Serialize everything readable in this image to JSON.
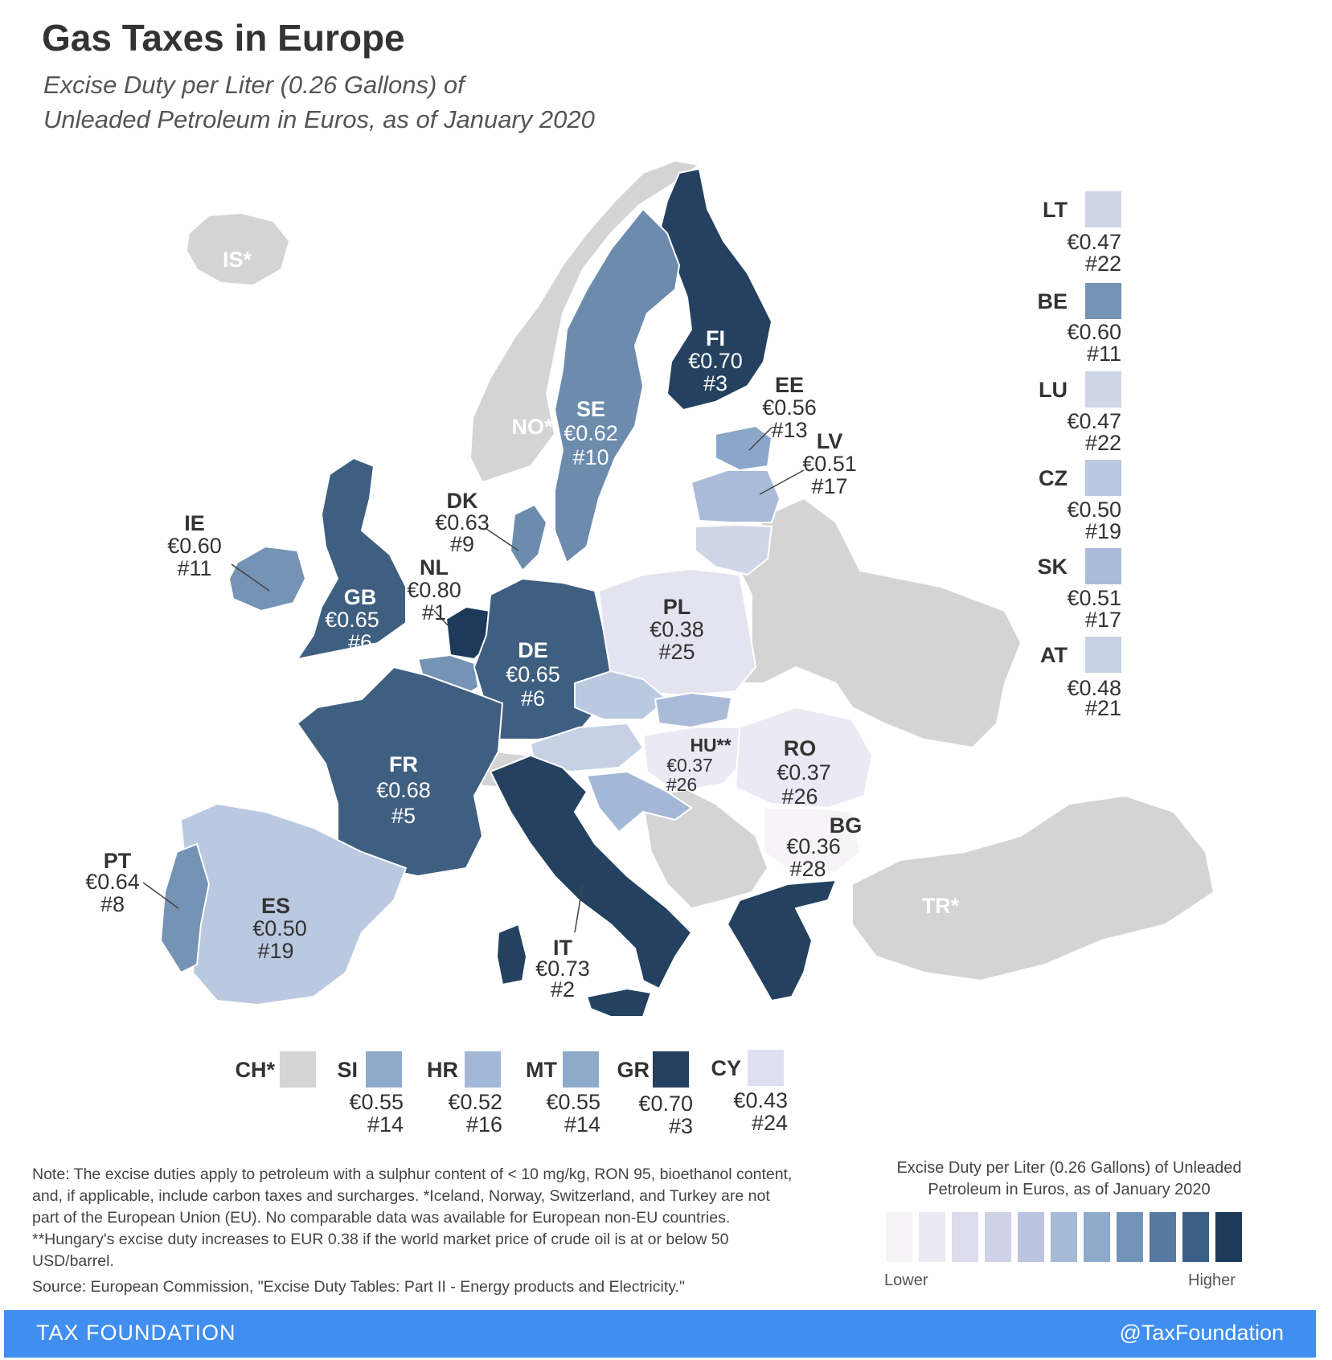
{
  "title": "Gas Taxes in Europe",
  "subtitle_line1": "Excise Duty per Liter (0.26 Gallons) of",
  "subtitle_line2": "Unleaded Petroleum in Euros, as of January 2020",
  "map_countries": [
    {
      "code": "FI",
      "value": "€0.70",
      "rank": "#3"
    },
    {
      "code": "SE",
      "value": "€0.62",
      "rank": "#10"
    },
    {
      "code": "EE",
      "value": "€0.56",
      "rank": "#13"
    },
    {
      "code": "LV",
      "value": "€0.51",
      "rank": "#17"
    },
    {
      "code": "DK",
      "value": "€0.63",
      "rank": "#9"
    },
    {
      "code": "IE",
      "value": "€0.60",
      "rank": "#11"
    },
    {
      "code": "NL",
      "value": "€0.80",
      "rank": "#1"
    },
    {
      "code": "GB",
      "value": "€0.65",
      "rank": "#6"
    },
    {
      "code": "DE",
      "value": "€0.65",
      "rank": "#6"
    },
    {
      "code": "PL",
      "value": "€0.38",
      "rank": "#25"
    },
    {
      "code": "HU**",
      "value": "€0.37",
      "rank": "#26"
    },
    {
      "code": "RO",
      "value": "€0.37",
      "rank": "#26"
    },
    {
      "code": "FR",
      "value": "€0.68",
      "rank": "#5"
    },
    {
      "code": "BG",
      "value": "€0.36",
      "rank": "#28"
    },
    {
      "code": "PT",
      "value": "€0.64",
      "rank": "#8"
    },
    {
      "code": "ES",
      "value": "€0.50",
      "rank": "#19"
    },
    {
      "code": "IT",
      "value": "€0.73",
      "rank": "#2"
    }
  ],
  "non_eu_labels": [
    "IS*",
    "NO*",
    "TR*"
  ],
  "side_legend": [
    {
      "code": "LT",
      "value": "€0.47",
      "rank": "#22",
      "color": "#cfd6e8"
    },
    {
      "code": "BE",
      "value": "€0.60",
      "rank": "#11",
      "color": "#7593b5"
    },
    {
      "code": "LU",
      "value": "€0.47",
      "rank": "#22",
      "color": "#cfd6e8"
    },
    {
      "code": "CZ",
      "value": "€0.50",
      "rank": "#19",
      "color": "#bac8e0"
    },
    {
      "code": "SK",
      "value": "€0.51",
      "rank": "#17",
      "color": "#a9bbd8"
    },
    {
      "code": "AT",
      "value": "€0.48",
      "rank": "#21",
      "color": "#c6d1e6"
    }
  ],
  "bottom_legend": [
    {
      "code": "CH*",
      "value": "",
      "rank": "",
      "color": "#d4d4d4"
    },
    {
      "code": "SI",
      "value": "€0.55",
      "rank": "#14",
      "color": "#8eaacb"
    },
    {
      "code": "HR",
      "value": "€0.52",
      "rank": "#16",
      "color": "#a3b8d6"
    },
    {
      "code": "MT",
      "value": "€0.55",
      "rank": "#14",
      "color": "#8eaacb"
    },
    {
      "code": "GR",
      "value": "€0.70",
      "rank": "#3",
      "color": "#24425f"
    },
    {
      "code": "CY",
      "value": "€0.43",
      "rank": "#24",
      "color": "#dfe0ef"
    }
  ],
  "note": "Note: The excise duties apply to petroleum with a sulphur content of < 10 mg/kg, RON 95, bioethanol content, and, if applicable, include carbon taxes and surcharges. *Iceland, Norway, Switzerland, and Turkey are not part of the European Union (EU). No comparable data was available for European non-EU countries. **Hungary's excise duty increases to EUR 0.38 if the world market price of crude oil is at or below 50 USD/barrel.",
  "source": "Source: European Commission, \"Excise Duty Tables: Part II - Energy products and Electricity.\"",
  "legend": {
    "title": "Excise Duty per Liter (0.26 Gallons) of Unleaded Petroleum in Euros, as of January 2020",
    "low_label": "Lower",
    "high_label": "Higher",
    "scale_colors": [
      "#f7f4f8",
      "#ebe9f4",
      "#dcdcec",
      "#cfd2e6",
      "#bcc5df",
      "#a5bad6",
      "#8eaacb",
      "#7293b8",
      "#55799f",
      "#3b5f85",
      "#1e3a5a"
    ]
  },
  "footer": {
    "brand": "TAX FOUNDATION",
    "handle": "@TaxFoundation"
  },
  "colors": {
    "non_eu": "#d4d4d4",
    "footer_bar": "#3f8ef0"
  }
}
